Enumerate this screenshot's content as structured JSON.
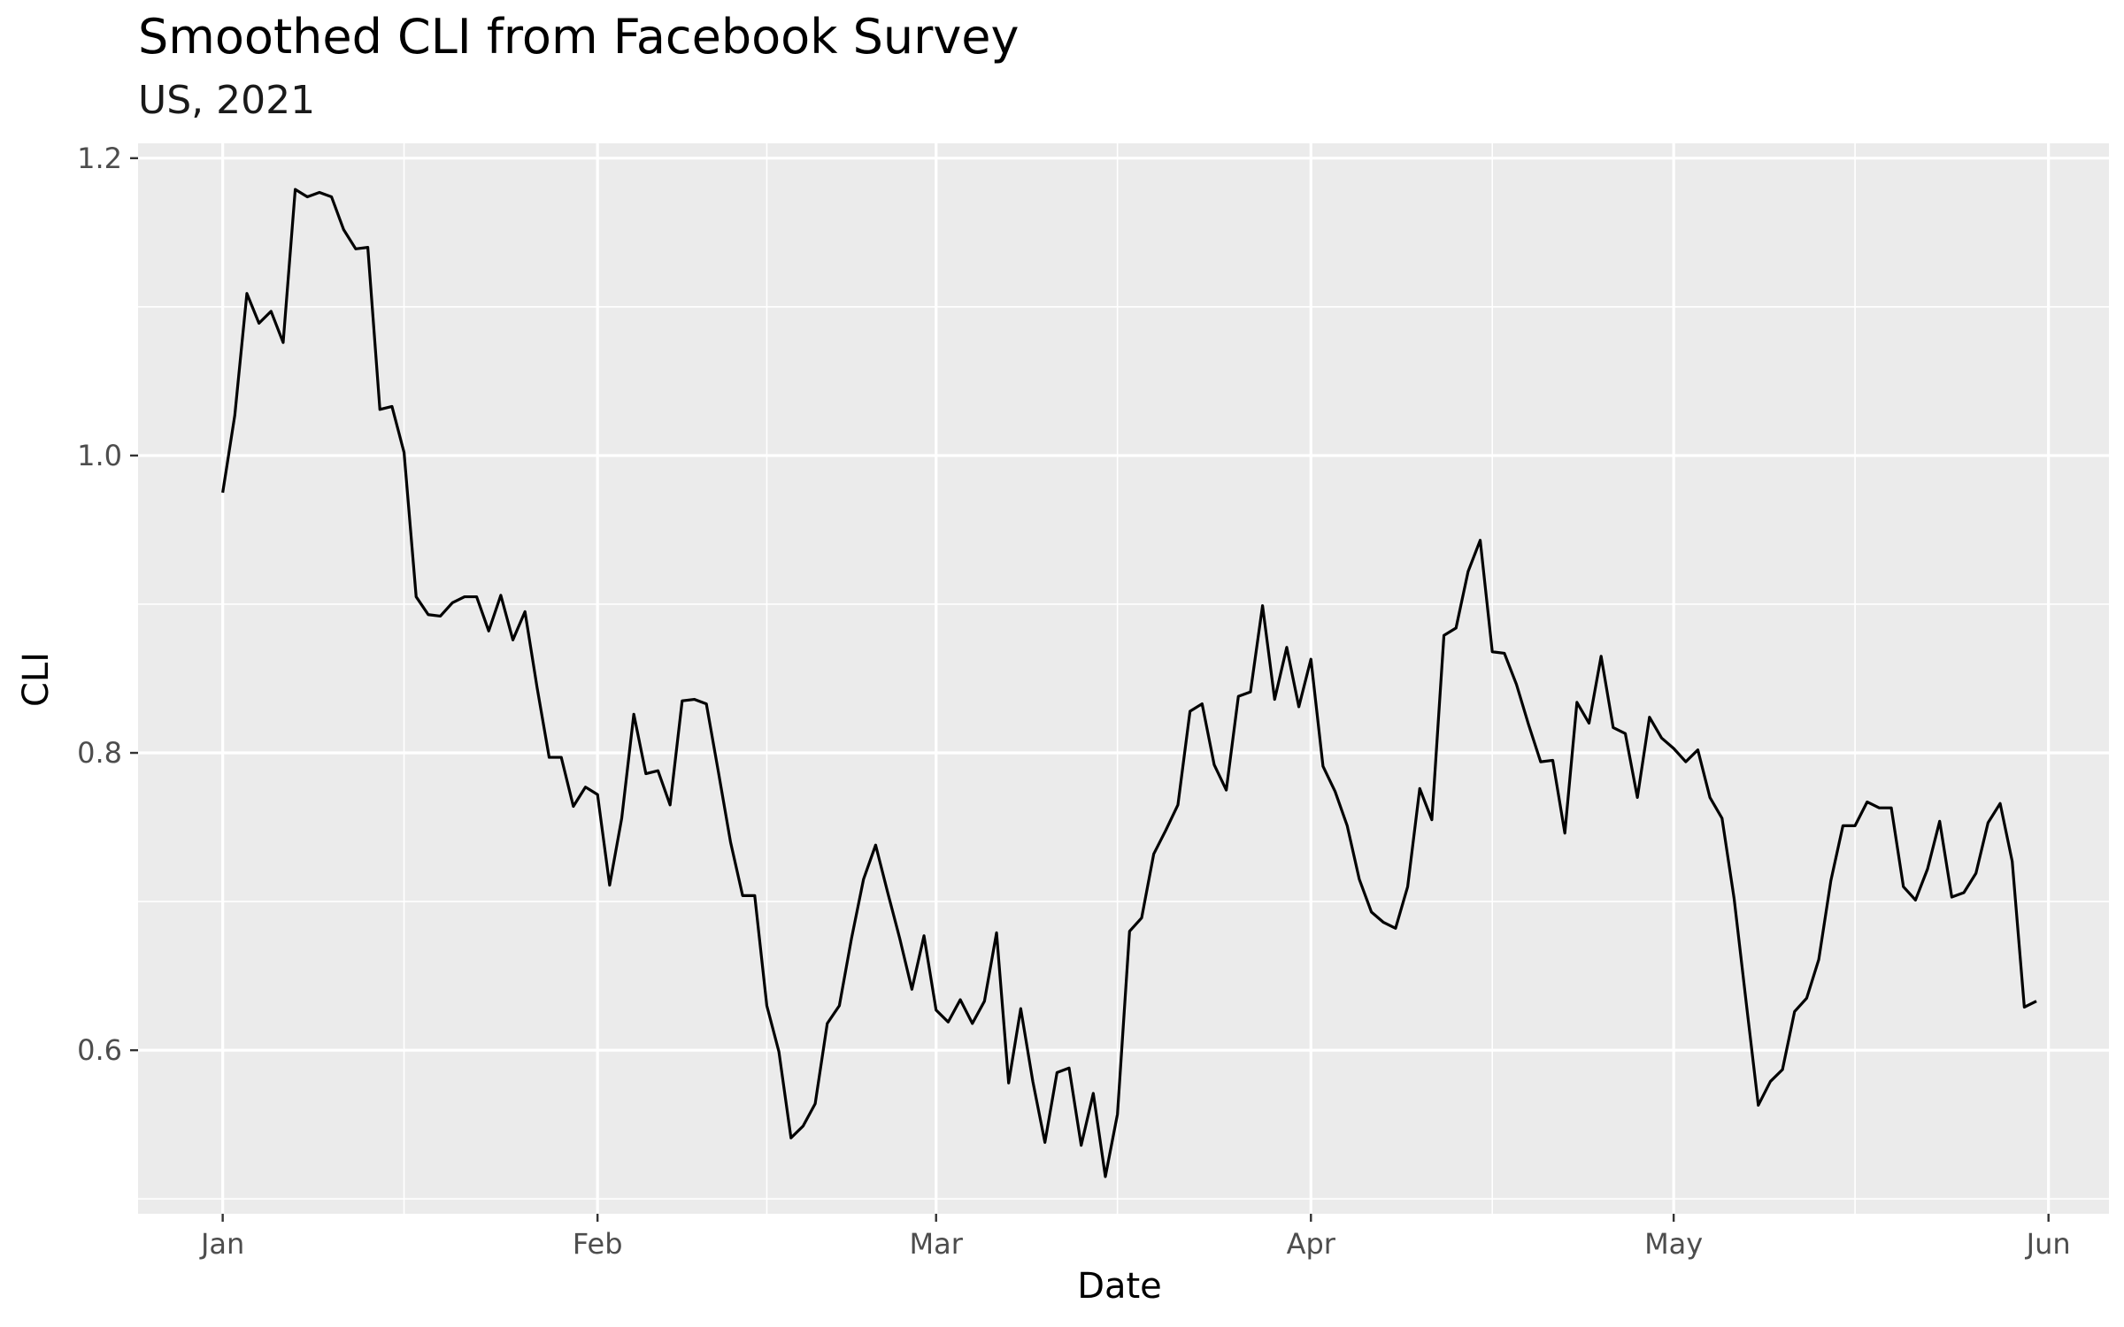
{
  "chart_data": {
    "type": "line",
    "title": "Smoothed CLI from Facebook Survey",
    "subtitle": "US, 2021",
    "xlabel": "Date",
    "ylabel": "CLI",
    "x_start": "2021-01-01",
    "x_end": "2021-05-31",
    "xlim": [
      "2020-12-25",
      "2021-06-06"
    ],
    "ylim": [
      0.49,
      1.21
    ],
    "x_ticks": [
      {
        "label": "Jan",
        "date": "2021-01-01"
      },
      {
        "label": "Feb",
        "date": "2021-02-01"
      },
      {
        "label": "Mar",
        "date": "2021-03-01"
      },
      {
        "label": "Apr",
        "date": "2021-04-01"
      },
      {
        "label": "May",
        "date": "2021-05-01"
      },
      {
        "label": "Jun",
        "date": "2021-06-01"
      }
    ],
    "x_minor_dates": [
      "2021-01-16",
      "2021-02-15",
      "2021-03-16",
      "2021-04-16",
      "2021-05-16"
    ],
    "y_ticks": [
      {
        "label": "0.6",
        "value": 0.6
      },
      {
        "label": "0.8",
        "value": 0.8
      },
      {
        "label": "1.0",
        "value": 1.0
      },
      {
        "label": "1.2",
        "value": 1.2
      }
    ],
    "y_minor": [
      0.5,
      0.7,
      0.9,
      1.1
    ],
    "grid": true,
    "legend": "none",
    "colors": {
      "line": "#000000",
      "panel": "#ebebeb",
      "grid": "#ffffff",
      "tick": "#333333"
    },
    "series": [
      {
        "values": [
          0.975,
          1.027,
          1.109,
          1.089,
          1.097,
          1.076,
          1.179,
          1.174,
          1.177,
          1.174,
          1.152,
          1.139,
          1.14,
          1.031,
          1.033,
          1.002,
          0.905,
          0.893,
          0.892,
          0.901,
          0.905,
          0.905,
          0.882,
          0.906,
          0.876,
          0.895,
          0.844,
          0.797,
          0.797,
          0.764,
          0.777,
          0.772,
          0.711,
          0.756,
          0.826,
          0.786,
          0.788,
          0.765,
          0.835,
          0.836,
          0.833,
          0.787,
          0.74,
          0.704,
          0.704,
          0.63,
          0.599,
          0.541,
          0.549,
          0.564,
          0.618,
          0.63,
          0.675,
          0.715,
          0.738,
          0.706,
          0.675,
          0.641,
          0.677,
          0.627,
          0.619,
          0.634,
          0.618,
          0.633,
          0.679,
          0.578,
          0.628,
          0.579,
          0.538,
          0.585,
          0.588,
          0.536,
          0.571,
          0.515,
          0.557,
          0.68,
          0.689,
          0.732,
          0.748,
          0.765,
          0.828,
          0.833,
          0.792,
          0.775,
          0.838,
          0.841,
          0.899,
          0.836,
          0.871,
          0.831,
          0.863,
          0.791,
          0.774,
          0.751,
          0.715,
          0.693,
          0.686,
          0.682,
          0.71,
          0.776,
          0.755,
          0.879,
          0.884,
          0.922,
          0.943,
          0.868,
          0.867,
          0.846,
          0.819,
          0.794,
          0.795,
          0.746,
          0.834,
          0.82,
          0.865,
          0.817,
          0.813,
          0.77,
          0.824,
          0.81,
          0.803,
          0.794,
          0.802,
          0.77,
          0.756,
          0.702,
          0.632,
          0.563,
          0.579,
          0.587,
          0.626,
          0.635,
          0.661,
          0.714,
          0.751,
          0.751,
          0.767,
          0.763,
          0.763,
          0.71,
          0.701,
          0.722,
          0.754,
          0.703,
          0.706,
          0.719,
          0.753,
          0.766,
          0.727,
          0.629,
          0.633
        ]
      }
    ]
  }
}
